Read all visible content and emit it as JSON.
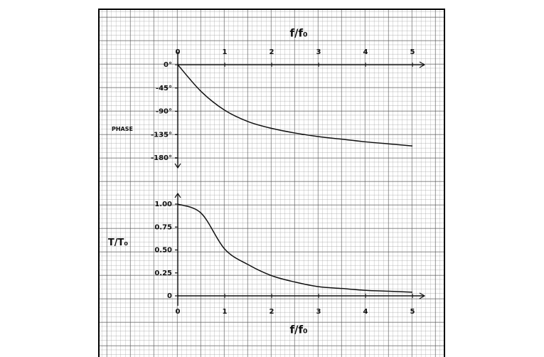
{
  "chart_data": [
    {
      "type": "line",
      "x_label": "f/f₀",
      "y_label": "PHASE",
      "x_axis_side": "top",
      "x": [
        0,
        0.5,
        1,
        1.5,
        2,
        2.5,
        3,
        3.5,
        4,
        4.5,
        5
      ],
      "values": [
        0,
        -52,
        -88,
        -110,
        -123,
        -132,
        -139,
        -144,
        -149,
        -153,
        -157
      ],
      "color": "#111111",
      "xlim": [
        0,
        5
      ],
      "xticks": [
        0,
        1,
        2,
        3,
        4,
        5
      ],
      "ylim": [
        -180,
        0
      ],
      "yticks": [
        {
          "value": 0,
          "label": "0°"
        },
        {
          "value": -45,
          "label": "-45°"
        },
        {
          "value": -90,
          "label": "-90°"
        },
        {
          "value": -135,
          "label": "-135°"
        },
        {
          "value": -180,
          "label": "-180°"
        }
      ]
    },
    {
      "type": "line",
      "x_label": "f/f₀",
      "y_label": "T/T₀",
      "x_axis_side": "bottom",
      "x": [
        0,
        0.5,
        1,
        1.5,
        2,
        2.5,
        3,
        3.5,
        4,
        4.5,
        5
      ],
      "values": [
        1,
        0.9,
        0.51,
        0.34,
        0.22,
        0.15,
        0.1,
        0.08,
        0.06,
        0.05,
        0.04
      ],
      "color": "#111111",
      "xlim": [
        0,
        5
      ],
      "xticks": [
        0,
        1,
        2,
        3,
        4,
        5
      ],
      "ylim": [
        0,
        1
      ],
      "yticks": [
        {
          "value": 1,
          "label": "1.00"
        },
        0.75,
        {
          "value": 0.5,
          "label": "0.50"
        },
        0.25,
        0
      ]
    }
  ]
}
